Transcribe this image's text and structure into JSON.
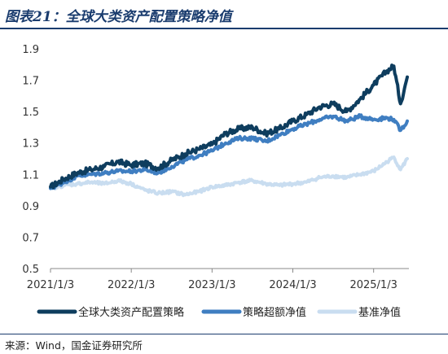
{
  "header": {
    "title": "图表21：全球大类资产配置策略净值"
  },
  "footer": {
    "source": "来源：Wind，国金证券研究所"
  },
  "chart_data": {
    "type": "line",
    "title": "图表21：全球大类资产配置策略净值",
    "xlabel": "",
    "ylabel": "",
    "ylim": [
      0.5,
      1.9
    ],
    "yticks": [
      "0.5",
      "0.7",
      "0.9",
      "1.1",
      "1.3",
      "1.5",
      "1.7",
      "1.9"
    ],
    "xticks": [
      "2021/1/3",
      "2022/1/3",
      "2023/1/3",
      "2024/1/3",
      "2025/1/3"
    ],
    "grid": false,
    "legend_position": "bottom",
    "x": [
      "2021-01",
      "2021-03",
      "2021-05",
      "2021-07",
      "2021-09",
      "2021-11",
      "2022-01",
      "2022-03",
      "2022-05",
      "2022-07",
      "2022-09",
      "2022-11",
      "2023-01",
      "2023-03",
      "2023-05",
      "2023-07",
      "2023-09",
      "2023-11",
      "2024-01",
      "2024-03",
      "2024-05",
      "2024-07",
      "2024-09",
      "2024-11",
      "2025-01",
      "2025-03",
      "2025-04",
      "2025-05",
      "2025-06"
    ],
    "series": [
      {
        "name": "全球大类资产配置策略",
        "color": "#0e3d5e",
        "values": [
          1.02,
          1.07,
          1.11,
          1.13,
          1.15,
          1.18,
          1.16,
          1.17,
          1.14,
          1.19,
          1.23,
          1.26,
          1.29,
          1.36,
          1.39,
          1.4,
          1.36,
          1.39,
          1.44,
          1.48,
          1.53,
          1.55,
          1.5,
          1.58,
          1.67,
          1.76,
          1.79,
          1.55,
          1.72
        ]
      },
      {
        "name": "策略超额净值",
        "color": "#3f7ec1",
        "values": [
          1.01,
          1.05,
          1.09,
          1.1,
          1.11,
          1.12,
          1.12,
          1.13,
          1.11,
          1.15,
          1.19,
          1.22,
          1.25,
          1.3,
          1.33,
          1.33,
          1.31,
          1.35,
          1.39,
          1.42,
          1.45,
          1.47,
          1.44,
          1.47,
          1.45,
          1.46,
          1.45,
          1.38,
          1.44
        ]
      },
      {
        "name": "基准净值",
        "color": "#c9ddf0",
        "values": [
          1.01,
          1.03,
          1.04,
          1.05,
          1.04,
          1.06,
          1.04,
          1.0,
          0.98,
          0.99,
          0.97,
          0.99,
          1.02,
          1.03,
          1.05,
          1.06,
          1.04,
          1.03,
          1.04,
          1.05,
          1.08,
          1.09,
          1.08,
          1.1,
          1.12,
          1.18,
          1.21,
          1.13,
          1.2
        ]
      }
    ]
  }
}
